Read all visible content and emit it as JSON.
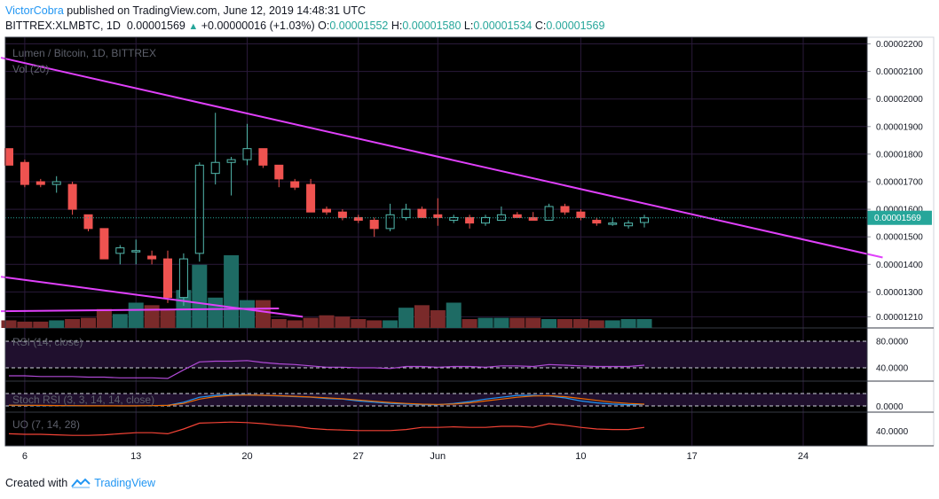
{
  "header": {
    "author": "VictorCobra",
    "published_text": "published on TradingView.com, June 12, 2019 14:48:31 UTC",
    "symbol": "BITTREX:XLMBTC, 1D",
    "last": "0.00001569",
    "change": "+0.00000016 (+1.03%)",
    "o_label": "O:",
    "o_value": "0.00001552",
    "h_label": "H:",
    "h_value": "0.00001580",
    "l_label": "L:",
    "l_value": "0.00001534",
    "c_label": "C:",
    "c_value": "0.00001569"
  },
  "footer": {
    "created_with": "Created with",
    "brand": "TradingView"
  },
  "chart_data": {
    "type": "candlestick",
    "title": "Lumen / Bitcoin, 1D, BITTREX",
    "volume_label": "Vol (20)",
    "price_axis_ticks": [
      "0.00002200",
      "0.00002100",
      "0.00002000",
      "0.00001900",
      "0.00001800",
      "0.00001700",
      "0.00001600",
      "0.00001500",
      "0.00001400",
      "0.00001300",
      "0.00001210"
    ],
    "last_price_label": "0.00001569",
    "x_tick_labels": [
      "6",
      "13",
      "20",
      "27",
      "Jun",
      "10",
      "17",
      "24"
    ],
    "x_ticks": [
      1,
      8,
      15,
      22,
      27,
      36,
      43,
      50
    ],
    "candles": [
      {
        "o": 1.82,
        "h": 1.82,
        "l": 1.76,
        "c": 1.76
      },
      {
        "o": 1.77,
        "h": 1.78,
        "l": 1.68,
        "c": 1.69
      },
      {
        "o": 1.7,
        "h": 1.71,
        "l": 1.68,
        "c": 1.69
      },
      {
        "o": 1.69,
        "h": 1.72,
        "l": 1.66,
        "c": 1.7
      },
      {
        "o": 1.69,
        "h": 1.7,
        "l": 1.58,
        "c": 1.6
      },
      {
        "o": 1.58,
        "h": 1.58,
        "l": 1.52,
        "c": 1.53
      },
      {
        "o": 1.53,
        "h": 1.53,
        "l": 1.42,
        "c": 1.42
      },
      {
        "o": 1.44,
        "h": 1.47,
        "l": 1.4,
        "c": 1.46
      },
      {
        "o": 1.45,
        "h": 1.49,
        "l": 1.4,
        "c": 1.45
      },
      {
        "o": 1.43,
        "h": 1.45,
        "l": 1.4,
        "c": 1.42
      },
      {
        "o": 1.42,
        "h": 1.45,
        "l": 1.26,
        "c": 1.28
      },
      {
        "o": 1.28,
        "h": 1.44,
        "l": 1.25,
        "c": 1.42
      },
      {
        "o": 1.44,
        "h": 1.77,
        "l": 1.41,
        "c": 1.76
      },
      {
        "o": 1.73,
        "h": 1.95,
        "l": 1.69,
        "c": 1.77
      },
      {
        "o": 1.77,
        "h": 1.79,
        "l": 1.65,
        "c": 1.78
      },
      {
        "o": 1.78,
        "h": 1.91,
        "l": 1.76,
        "c": 1.82
      },
      {
        "o": 1.82,
        "h": 1.82,
        "l": 1.75,
        "c": 1.76
      },
      {
        "o": 1.76,
        "h": 1.76,
        "l": 1.68,
        "c": 1.71
      },
      {
        "o": 1.7,
        "h": 1.71,
        "l": 1.67,
        "c": 1.68
      },
      {
        "o": 1.69,
        "h": 1.71,
        "l": 1.59,
        "c": 1.59
      },
      {
        "o": 1.6,
        "h": 1.61,
        "l": 1.58,
        "c": 1.59
      },
      {
        "o": 1.59,
        "h": 1.6,
        "l": 1.56,
        "c": 1.57
      },
      {
        "o": 1.57,
        "h": 1.58,
        "l": 1.55,
        "c": 1.56
      },
      {
        "o": 1.56,
        "h": 1.57,
        "l": 1.5,
        "c": 1.53
      },
      {
        "o": 1.53,
        "h": 1.62,
        "l": 1.52,
        "c": 1.58
      },
      {
        "o": 1.57,
        "h": 1.62,
        "l": 1.56,
        "c": 1.6
      },
      {
        "o": 1.6,
        "h": 1.61,
        "l": 1.57,
        "c": 1.57
      },
      {
        "o": 1.58,
        "h": 1.64,
        "l": 1.54,
        "c": 1.57
      },
      {
        "o": 1.56,
        "h": 1.58,
        "l": 1.55,
        "c": 1.57
      },
      {
        "o": 1.57,
        "h": 1.58,
        "l": 1.53,
        "c": 1.55
      },
      {
        "o": 1.55,
        "h": 1.58,
        "l": 1.54,
        "c": 1.57
      },
      {
        "o": 1.56,
        "h": 1.61,
        "l": 1.56,
        "c": 1.58
      },
      {
        "o": 1.58,
        "h": 1.59,
        "l": 1.57,
        "c": 1.57
      },
      {
        "o": 1.57,
        "h": 1.59,
        "l": 1.56,
        "c": 1.56
      },
      {
        "o": 1.56,
        "h": 1.62,
        "l": 1.56,
        "c": 1.61
      },
      {
        "o": 1.61,
        "h": 1.62,
        "l": 1.58,
        "c": 1.59
      },
      {
        "o": 1.59,
        "h": 1.6,
        "l": 1.56,
        "c": 1.57
      },
      {
        "o": 1.56,
        "h": 1.57,
        "l": 1.54,
        "c": 1.55
      },
      {
        "o": 1.55,
        "h": 1.57,
        "l": 1.54,
        "c": 1.55
      },
      {
        "o": 1.54,
        "h": 1.56,
        "l": 1.53,
        "c": 1.55
      },
      {
        "o": 1.552,
        "h": 1.58,
        "l": 1.534,
        "c": 1.569
      }
    ],
    "volume": [
      12,
      10,
      10,
      12,
      14,
      16,
      30,
      22,
      40,
      36,
      28,
      60,
      100,
      48,
      115,
      44,
      44,
      14,
      12,
      16,
      20,
      18,
      14,
      12,
      12,
      32,
      36,
      28,
      40,
      14,
      16,
      16,
      16,
      16,
      14,
      14,
      14,
      12,
      12,
      14,
      14
    ],
    "trendlines": [
      {
        "from": {
          "bar": -0.5,
          "price": 2.15
        },
        "to": {
          "bar": 55,
          "price": 1.425
        }
      },
      {
        "from": {
          "bar": -0.5,
          "price": 1.355
        },
        "to": {
          "bar": 18.5,
          "price": 1.21
        }
      },
      {
        "from": {
          "bar": -0.5,
          "price": 1.23
        },
        "to": {
          "bar": 17,
          "price": 1.24
        }
      }
    ],
    "indicators": [
      {
        "label": "RSI (14, close)",
        "levels": [
          "80.0000",
          "40.0000"
        ],
        "values": [
          28,
          28,
          27,
          27,
          27,
          26,
          26,
          25,
          25,
          25,
          24,
          37,
          49,
          50,
          50,
          51,
          48,
          46,
          45,
          43,
          41,
          41,
          40,
          40,
          39,
          42,
          42,
          41,
          42,
          42,
          41,
          43,
          43,
          42,
          45,
          44,
          43,
          42,
          42,
          42,
          44
        ]
      },
      {
        "label": "Stoch RSI (3, 3, 14, 14, close)",
        "levels": [
          "0.0000"
        ],
        "k": [
          5,
          4,
          3,
          2,
          1,
          1,
          1,
          0,
          0,
          2,
          5,
          30,
          70,
          85,
          90,
          90,
          85,
          80,
          75,
          70,
          60,
          55,
          40,
          30,
          20,
          15,
          10,
          10,
          20,
          35,
          55,
          70,
          85,
          85,
          80,
          65,
          40,
          25,
          15,
          10,
          12
        ],
        "d": [
          6,
          5,
          4,
          3,
          2,
          1,
          1,
          1,
          1,
          2,
          4,
          20,
          55,
          75,
          85,
          88,
          86,
          82,
          78,
          72,
          65,
          58,
          48,
          38,
          28,
          20,
          14,
          12,
          15,
          25,
          40,
          55,
          70,
          80,
          82,
          75,
          60,
          45,
          30,
          20,
          14
        ]
      },
      {
        "label": "UO (7, 14, 28)",
        "levels": [
          "40.0000"
        ],
        "values": [
          36,
          35,
          35,
          34,
          33,
          33,
          34,
          36,
          38,
          38,
          36,
          45,
          56,
          57,
          58,
          57,
          55,
          52,
          50,
          46,
          44,
          43,
          42,
          42,
          42,
          44,
          48,
          48,
          49,
          48,
          48,
          50,
          50,
          48,
          55,
          52,
          48,
          45,
          44,
          44,
          48
        ]
      }
    ]
  }
}
